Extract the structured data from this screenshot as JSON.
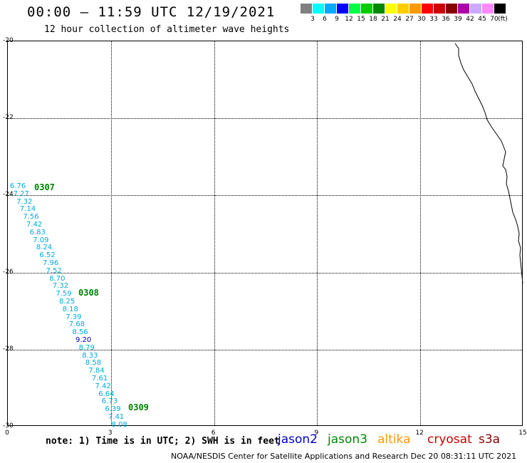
{
  "title": "00:00 – 11:59 UTC 12/19/2021",
  "subtitle": "12 hour collection of altimeter wave heights",
  "legend": {
    "colors": [
      "#808080",
      "#00ffff",
      "#00aaff",
      "#0000ff",
      "#00ff44",
      "#00cc00",
      "#008800",
      "#ffff00",
      "#ffcc00",
      "#ff9900",
      "#ff0000",
      "#cc0000",
      "#880000",
      "#aa00aa",
      "#ccaaff",
      "#ff88ff",
      "#000000"
    ],
    "labels": [
      "3",
      "6",
      "9",
      "12",
      "15",
      "18",
      "21",
      "24",
      "27",
      "30",
      "33",
      "36",
      "39",
      "42",
      "45",
      "70",
      "(ft)"
    ]
  },
  "lat_labels": [
    "-20",
    "-22",
    "-24",
    "-26",
    "-28",
    "-30"
  ],
  "lon_labels": [
    "0",
    "3",
    "6",
    "9",
    "12",
    "15"
  ],
  "wave_heights": [
    "6.76",
    "7.27",
    "7.32",
    "7.14",
    "7.56",
    "7.42",
    "6.83",
    "7.09",
    "8.24",
    "6.52",
    "7.96",
    "7.52",
    "8.70",
    "7.32",
    "7.59",
    "8.25",
    "8.18",
    "7.39",
    "7.68",
    "8.56",
    "9.20",
    "8.79",
    "8.33",
    "8.58",
    "7.84",
    "7.61",
    "7.42",
    "6.64",
    "6.73",
    "6.39",
    "7.41",
    "8.08"
  ],
  "pass_labels": [
    "0307",
    "0308",
    "0309"
  ],
  "note": "note: 1) Time is in UTC; 2) SWH is in feet",
  "satellites": [
    {
      "name": "jason2",
      "color": "#0000cc"
    },
    {
      "name": "jason3",
      "color": "#008800"
    },
    {
      "name": "altika",
      "color": "#ff9900"
    },
    {
      "name": "cryosat",
      "color": "#cc0000"
    },
    {
      "name": "s3a",
      "color": "#880000"
    }
  ],
  "credit": "NOAA/NESDIS Center for Satellite Applications and Research    Dec 20 08:31:11 UTC 2021"
}
